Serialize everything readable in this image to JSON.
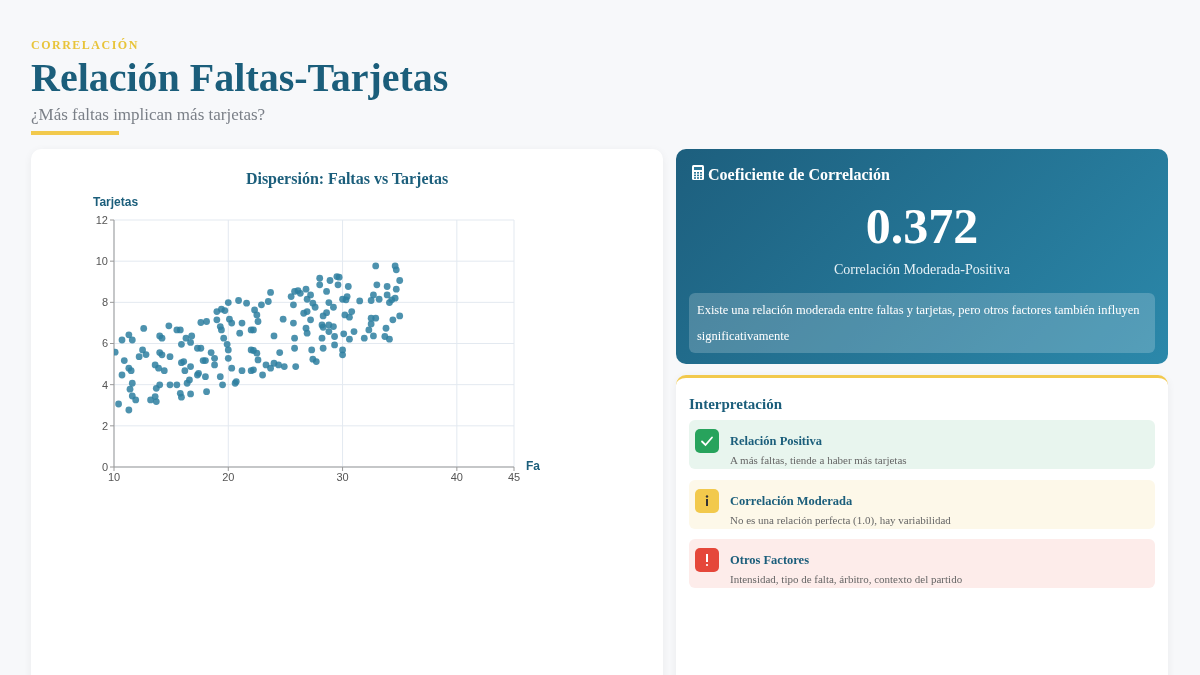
{
  "chart_data": [
    {
      "type": "other",
      "title": "Relación Faltas-Tarjetas",
      "subtitle": "¿Más faltas implican más tarjetas?",
      "annotations": [
        "CORRELACIÓN"
      ]
    },
    {
      "type": "scatter",
      "title": "Dispersión: Faltas vs Tarjetas",
      "xlabel": "Fa",
      "ylabel": "Tarjetas",
      "xlim": [
        10,
        45
      ],
      "xticks": [
        10,
        20,
        30,
        40,
        45
      ],
      "ylim": [
        0,
        12
      ],
      "yticks": [
        0,
        2,
        4,
        6,
        8,
        10,
        12
      ],
      "grid": true,
      "marker": "circle",
      "x": [
        10.1,
        10.4,
        10.7,
        10.9,
        10.7,
        11.3,
        11.3,
        11.6,
        11.5,
        11.3,
        11.4,
        11.6,
        11.6,
        11.9,
        12.2,
        12.5,
        12.6,
        12.8,
        13.2,
        13.6,
        13.6,
        13.7,
        13.9,
        13.7,
        14.0,
        14.0,
        14.2,
        14.0,
        14.2,
        14.4,
        14.8,
        14.9,
        14.9,
        15.5,
        15.5,
        15.8,
        15.9,
        15.9,
        15.8,
        15.9,
        16.1,
        16.2,
        16.3,
        16.4,
        16.6,
        16.7,
        16.7,
        16.8,
        16.7,
        17.3,
        17.6,
        17.3,
        17.4,
        17.8,
        18.0,
        18.0,
        18.1,
        18.1,
        17.6,
        18.5,
        18.8,
        18.8,
        19.0,
        19.0,
        19.3,
        19.4,
        19.6,
        19.4,
        19.7,
        19.9,
        20.0,
        20.0,
        20.0,
        20.1,
        20.3,
        19.3,
        19.5,
        20.3,
        20.6,
        20.7,
        20.9,
        21.0,
        21.2,
        21.2,
        21.6,
        22.0,
        22.0,
        22.0,
        23.7,
        23.5,
        22.9,
        22.3,
        22.5,
        22.6,
        22.2,
        22.2,
        22.5,
        22.6,
        23.0,
        22.2,
        23.3,
        23.7,
        24.0,
        24.0,
        24.5,
        24.4,
        24.8,
        24.9,
        25.5,
        25.8,
        26.1,
        26.3,
        26.8,
        25.7,
        25.7,
        25.8,
        25.8,
        25.9,
        26.6,
        26.9,
        27.2,
        26.9,
        26.8,
        26.9,
        27.3,
        27.4,
        27.7,
        27.2,
        27.4,
        27.6,
        28.0,
        28.0,
        28.3,
        28.2,
        28.3,
        28.2,
        28.3,
        28.6,
        28.6,
        28.8,
        28.8,
        28.9,
        28.8,
        29.2,
        29.2,
        29.3,
        29.3,
        29.5,
        29.7,
        29.6,
        30.0,
        30.0,
        30.0,
        30.2,
        30.3,
        30.4,
        30.5,
        30.1,
        30.6,
        30.6,
        30.8,
        31.0,
        31.5,
        31.9,
        32.3,
        32.5,
        32.5,
        32.5,
        32.7,
        32.9,
        32.9,
        33.0,
        32.7,
        33.2,
        33.8,
        33.9,
        33.7,
        33.9,
        34.1,
        34.1,
        34.3,
        34.4,
        34.6,
        34.7,
        34.6,
        34.7,
        35.0,
        35.0
      ],
      "series": [
        {
          "color": "#2e7fa0",
          "values": [
            5.58,
            3.06,
            6.17,
            5.17,
            4.47,
            4.8,
            6.42,
            6.17,
            4.68,
            2.77,
            3.78,
            4.07,
            3.45,
            3.26,
            5.36,
            5.69,
            6.73,
            5.46,
            3.26,
            4.96,
            3.42,
            3.18,
            4.8,
            3.82,
            3.99,
            6.37,
            6.26,
            5.56,
            5.45,
            4.68,
            6.86,
            5.36,
            3.99,
            3.99,
            6.66,
            6.66,
            5.96,
            5.07,
            3.58,
            3.39,
            5.12,
            4.68,
            6.26,
            4.07,
            4.23,
            3.55,
            4.88,
            6.37,
            6.05,
            5.77,
            5.77,
            4.47,
            4.55,
            5.17,
            5.17,
            4.39,
            3.66,
            7.07,
            7.02,
            5.56,
            5.28,
            4.96,
            7.55,
            7.15,
            6.82,
            6.66,
            6.26,
            7.67,
            7.6,
            5.96,
            5.69,
            5.28,
            7.99,
            7.18,
            6.99,
            4.39,
            3.99,
            4.8,
            4.07,
            4.15,
            8.09,
            6.5,
            6.99,
            4.68,
            7.96,
            6.66,
            5.69,
            4.68,
            8.48,
            8.04,
            7.88,
            7.63,
            7.39,
            7.07,
            6.66,
            5.66,
            5.53,
            5.2,
            4.47,
            4.72,
            4.96,
            4.8,
            6.37,
            5.04,
            5.56,
            4.96,
            7.18,
            4.88,
            8.28,
            8.53,
            8.57,
            8.44,
            8.64,
            7.88,
            6.99,
            6.26,
            5.77,
            4.88,
            7.47,
            7.55,
            8.36,
            8.15,
            6.74,
            6.5,
            5.69,
            5.24,
            5.12,
            7.15,
            7.96,
            7.76,
            9.17,
            8.85,
            7.34,
            6.9,
            6.79,
            6.26,
            5.77,
            8.53,
            7.5,
            7.99,
            6.9,
            9.06,
            6.58,
            7.76,
            6.82,
            6.34,
            5.93,
            9.25,
            9.22,
            8.85,
            8.15,
            5.69,
            5.45,
            7.39,
            8.12,
            8.28,
            8.77,
            6.47,
            7.28,
            6.21,
            7.55,
            6.58,
            8.07,
            6.26,
            6.66,
            6.95,
            8.09,
            7.23,
            6.37,
            9.77,
            7.23,
            8.85,
            8.36,
            8.15,
            6.74,
            8.77,
            6.34,
            8.36,
            6.21,
            7.99,
            8.12,
            7.15,
            9.77,
            9.58,
            8.2,
            8.64,
            7.34,
            9.06
          ]
        }
      ]
    },
    {
      "type": "other",
      "title": "Coeficiente de Correlación",
      "annotations": [
        "0.372",
        "Correlación Moderada-Positiva",
        "Existe una relación moderada entre faltas y tarjetas, pero otros factores también influyen significativamente"
      ]
    },
    {
      "type": "other",
      "title": "Interpretación",
      "annotations": [
        "Relación Positiva",
        "A más faltas, tiende a haber más tarjetas",
        "Correlación Moderada",
        "No es una relación perfecta (1.0), hay variabilidad",
        "Otros Factores",
        "Intensidad, tipo de falta, árbitro, contexto del partido"
      ]
    }
  ]
}
